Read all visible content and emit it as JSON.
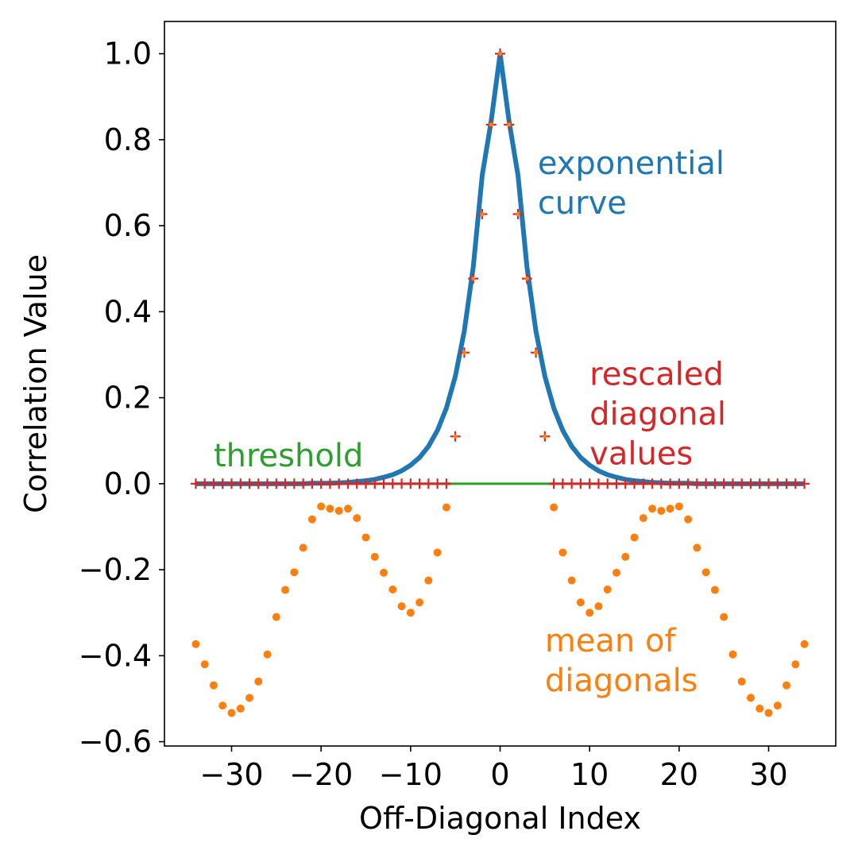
{
  "chart_data": {
    "type": "line",
    "title": "",
    "xlabel": "Off-Diagonal Index",
    "ylabel": "Correlation Value",
    "xlim": [
      -37.5,
      37.5
    ],
    "ylim": [
      -0.61,
      1.075
    ],
    "x_ticks": [
      -30,
      -20,
      -10,
      0,
      10,
      20,
      30
    ],
    "x_tick_labels": [
      "−30",
      "−20",
      "−10",
      "0",
      "10",
      "20",
      "30"
    ],
    "y_ticks": [
      -0.6,
      -0.4,
      -0.2,
      0.0,
      0.2,
      0.4,
      0.6,
      0.8,
      1.0
    ],
    "y_tick_labels": [
      "−0.6",
      "−0.4",
      "−0.2",
      "0.0",
      "0.2",
      "0.4",
      "0.6",
      "0.8",
      "1.0"
    ],
    "grid": false,
    "legend": "none",
    "series": [
      {
        "kind": "line",
        "color": "#1f77b4",
        "x": [
          -34,
          -33,
          -32,
          -31,
          -30,
          -29,
          -28,
          -27,
          -26,
          -25,
          -24,
          -23,
          -22,
          -21,
          -20,
          -19,
          -18,
          -17,
          -16,
          -15,
          -14,
          -13,
          -12,
          -11,
          -10,
          -9,
          -8,
          -7,
          -6,
          -5,
          -4,
          -3,
          -2,
          -1,
          0,
          1,
          2,
          3,
          4,
          5,
          6,
          7,
          8,
          9,
          10,
          11,
          12,
          13,
          14,
          15,
          16,
          17,
          18,
          19,
          20,
          21,
          22,
          23,
          24,
          25,
          26,
          27,
          28,
          29,
          30,
          31,
          32,
          33,
          34
        ],
        "y": [
          0.0,
          0.0,
          0.0,
          0.0,
          0.0,
          0.0,
          0.0,
          0.0,
          0.0,
          0.0,
          0.0,
          0.0,
          0.0,
          0.001,
          0.001,
          0.001,
          0.002,
          0.003,
          0.005,
          0.007,
          0.01,
          0.015,
          0.021,
          0.03,
          0.043,
          0.061,
          0.087,
          0.124,
          0.176,
          0.25,
          0.355,
          0.504,
          0.717,
          0.843,
          1.0,
          0.843,
          0.717,
          0.504,
          0.355,
          0.25,
          0.176,
          0.124,
          0.087,
          0.061,
          0.043,
          0.03,
          0.021,
          0.015,
          0.01,
          0.007,
          0.005,
          0.003,
          0.002,
          0.001,
          0.001,
          0.001,
          0.0,
          0.0,
          0.0,
          0.0,
          0.0,
          0.0,
          0.0,
          0.0,
          0.0,
          0.0,
          0.0,
          0.0,
          0.0
        ]
      },
      {
        "kind": "plus-markers",
        "color": "#d62728",
        "x": [
          -34,
          -33,
          -32,
          -31,
          -30,
          -29,
          -28,
          -27,
          -26,
          -25,
          -24,
          -23,
          -22,
          -21,
          -20,
          -19,
          -18,
          -17,
          -16,
          -15,
          -14,
          -13,
          -12,
          -11,
          -10,
          -9,
          -8,
          -7,
          -6,
          -5,
          -4,
          -3,
          -2,
          -1,
          0,
          1,
          2,
          3,
          4,
          5,
          6,
          7,
          8,
          9,
          10,
          11,
          12,
          13,
          14,
          15,
          16,
          17,
          18,
          19,
          20,
          21,
          22,
          23,
          24,
          25,
          26,
          27,
          28,
          29,
          30,
          31,
          32,
          33,
          34
        ],
        "y": [
          0,
          0,
          0,
          0,
          0,
          0,
          0,
          0,
          0,
          0,
          0,
          0,
          0,
          0,
          0,
          0,
          0,
          0,
          0,
          0,
          0,
          0,
          0,
          0,
          0,
          0,
          0,
          0,
          0,
          0.11,
          0.305,
          0.477,
          0.627,
          0.835,
          1.0,
          0.835,
          0.627,
          0.477,
          0.305,
          0.11,
          0,
          0,
          0,
          0,
          0,
          0,
          0,
          0,
          0,
          0,
          0,
          0,
          0,
          0,
          0,
          0,
          0,
          0,
          0,
          0,
          0,
          0,
          0,
          0,
          0,
          0,
          0,
          0,
          0
        ]
      },
      {
        "kind": "dot-markers",
        "color": "#ff7f0e",
        "x": [
          -34,
          -33,
          -32,
          -31,
          -30,
          -29,
          -28,
          -27,
          -26,
          -25,
          -24,
          -23,
          -22,
          -21,
          -20,
          -19,
          -18,
          -17,
          -16,
          -15,
          -14,
          -13,
          -12,
          -11,
          -10,
          -9,
          -8,
          -7,
          -6,
          6,
          7,
          8,
          9,
          10,
          11,
          12,
          13,
          14,
          15,
          16,
          17,
          18,
          19,
          20,
          21,
          22,
          23,
          24,
          25,
          26,
          27,
          28,
          29,
          30,
          31,
          32,
          33,
          34
        ],
        "y": [
          -0.373,
          -0.42,
          -0.469,
          -0.516,
          -0.533,
          -0.523,
          -0.498,
          -0.46,
          -0.397,
          -0.31,
          -0.247,
          -0.206,
          -0.149,
          -0.083,
          -0.053,
          -0.058,
          -0.063,
          -0.058,
          -0.08,
          -0.125,
          -0.17,
          -0.207,
          -0.246,
          -0.285,
          -0.3,
          -0.276,
          -0.225,
          -0.16,
          -0.055,
          -0.055,
          -0.16,
          -0.225,
          -0.276,
          -0.3,
          -0.285,
          -0.246,
          -0.207,
          -0.17,
          -0.125,
          -0.08,
          -0.058,
          -0.063,
          -0.058,
          -0.053,
          -0.083,
          -0.149,
          -0.206,
          -0.247,
          -0.31,
          -0.397,
          -0.46,
          -0.498,
          -0.523,
          -0.533,
          -0.516,
          -0.469,
          -0.42,
          -0.373
        ]
      },
      {
        "kind": "line",
        "color": "#2ca02c",
        "x": [
          -34,
          34
        ],
        "y": [
          0.0,
          0.0
        ]
      },
      {
        "kind": "line",
        "color": "#d62728",
        "x": [
          -34,
          -5.5
        ],
        "y": [
          0.0,
          0.0
        ]
      },
      {
        "kind": "line",
        "color": "#d62728",
        "x": [
          5.5,
          34
        ],
        "y": [
          0.0,
          0.0
        ]
      }
    ],
    "annotations": [
      {
        "lines": [
          "exponential",
          "curve"
        ],
        "color": "#1f77b4",
        "x": 4.2,
        "y": 0.72
      },
      {
        "lines": [
          "rescaled",
          "diagonal",
          "values"
        ],
        "color": "#d62728",
        "x": 10.0,
        "y": 0.23
      },
      {
        "lines": [
          "threshold"
        ],
        "color": "#2ca02c",
        "x": -32.0,
        "y": 0.04
      },
      {
        "lines": [
          "mean of",
          "diagonals"
        ],
        "color": "#ff7f0e",
        "x": 5.0,
        "y": -0.39
      }
    ]
  }
}
